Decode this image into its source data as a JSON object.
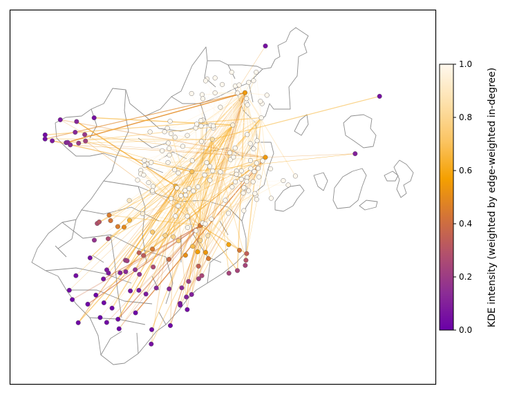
{
  "chart_data": {
    "type": "scatter",
    "title": "",
    "description_axes": "spatial map, no axis ticks",
    "colorbar": {
      "label": "KDE intensity (weighted by edge-weighted in-degree)",
      "range": [
        0.0,
        1.0
      ],
      "ticks": [
        "0.0",
        "0.2",
        "0.4",
        "0.6",
        "0.8",
        "1.0"
      ],
      "colormap_stops": [
        "#6a00a8",
        "#8c2d95",
        "#b14f6e",
        "#d2723a",
        "#f5a000",
        "#fbc462",
        "#fde0a9",
        "#fff8ee"
      ]
    },
    "hub_nodes": [
      {
        "x": 0.59,
        "y": 0.72,
        "v": 1.0
      },
      {
        "x": 0.52,
        "y": 0.7,
        "v": 0.95
      },
      {
        "x": 0.47,
        "y": 0.66,
        "v": 0.85
      },
      {
        "x": 0.42,
        "y": 0.57,
        "v": 0.7
      },
      {
        "x": 0.38,
        "y": 0.53,
        "v": 0.65
      },
      {
        "x": 0.55,
        "y": 0.79,
        "v": 0.55
      },
      {
        "x": 0.6,
        "y": 0.61,
        "v": 0.55
      },
      {
        "x": 0.44,
        "y": 0.42,
        "v": 0.45
      }
    ],
    "periphery_nodes": [
      {
        "x": 0.18,
        "y": 0.72,
        "v": 0.05
      },
      {
        "x": 0.88,
        "y": 0.78,
        "v": 0.05
      },
      {
        "x": 0.82,
        "y": 0.62,
        "v": 0.1
      },
      {
        "x": 0.6,
        "y": 0.92,
        "v": 0.05
      },
      {
        "x": 0.32,
        "y": 0.09,
        "v": 0.05
      },
      {
        "x": 0.17,
        "y": 0.33,
        "v": 0.05
      }
    ],
    "background_color": "#ffffff",
    "region_outline_color": "#8c8c8c"
  }
}
